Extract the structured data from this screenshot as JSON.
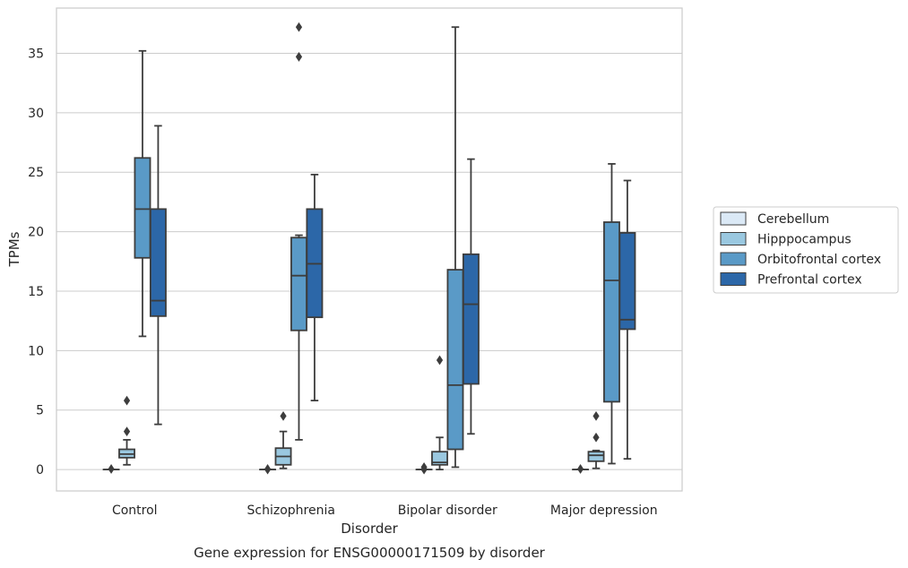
{
  "chart_data": {
    "type": "box",
    "caption": "Gene expression for ENSG00000171509 by disorder",
    "xlabel": "Disorder",
    "ylabel": "TPMs",
    "ylim": [
      -1.8,
      38.8
    ],
    "yticks": [
      0,
      5,
      10,
      15,
      20,
      25,
      30,
      35
    ],
    "grid": "horizontal",
    "legend_position": "right",
    "categories": [
      "Control",
      "Schizophrenia",
      "Bipolar disorder",
      "Major depression"
    ],
    "series": [
      {
        "name": "Cerebellum",
        "color": "#dbe9f6",
        "boxes": [
          {
            "whisker_low": 0.0,
            "q1": 0.0,
            "median": 0.0,
            "q3": 0.0,
            "whisker_high": 0.0,
            "outliers": [
              0.05
            ]
          },
          {
            "whisker_low": 0.0,
            "q1": 0.0,
            "median": 0.0,
            "q3": 0.0,
            "whisker_high": 0.0,
            "outliers": [
              0.0,
              0.05
            ]
          },
          {
            "whisker_low": 0.0,
            "q1": 0.0,
            "median": 0.0,
            "q3": 0.0,
            "whisker_high": 0.0,
            "outliers": [
              0.0,
              0.2
            ]
          },
          {
            "whisker_low": 0.0,
            "q1": 0.0,
            "median": 0.0,
            "q3": 0.0,
            "whisker_high": 0.0,
            "outliers": [
              0.05
            ]
          }
        ]
      },
      {
        "name": "Hipppocampus",
        "color": "#9ac8e0",
        "boxes": [
          {
            "whisker_low": 0.4,
            "q1": 1.0,
            "median": 1.3,
            "q3": 1.7,
            "whisker_high": 2.5,
            "outliers": [
              3.2,
              5.8
            ]
          },
          {
            "whisker_low": 0.1,
            "q1": 0.4,
            "median": 1.1,
            "q3": 1.8,
            "whisker_high": 3.2,
            "outliers": [
              4.5
            ]
          },
          {
            "whisker_low": 0.0,
            "q1": 0.4,
            "median": 0.6,
            "q3": 1.5,
            "whisker_high": 2.7,
            "outliers": [
              9.2
            ]
          },
          {
            "whisker_low": 0.1,
            "q1": 0.7,
            "median": 1.2,
            "q3": 1.5,
            "whisker_high": 1.6,
            "outliers": [
              2.7,
              4.5
            ]
          }
        ]
      },
      {
        "name": "Orbitofrontal cortex",
        "color": "#5a9ac7",
        "boxes": [
          {
            "whisker_low": 11.2,
            "q1": 17.8,
            "median": 21.9,
            "q3": 26.2,
            "whisker_high": 35.2,
            "outliers": []
          },
          {
            "whisker_low": 2.5,
            "q1": 11.7,
            "median": 16.3,
            "q3": 19.5,
            "whisker_high": 19.7,
            "outliers": [
              34.7,
              37.2
            ]
          },
          {
            "whisker_low": 0.2,
            "q1": 1.7,
            "median": 7.1,
            "q3": 16.8,
            "whisker_high": 37.2,
            "outliers": []
          },
          {
            "whisker_low": 0.5,
            "q1": 5.7,
            "median": 15.9,
            "q3": 20.8,
            "whisker_high": 25.7,
            "outliers": []
          }
        ]
      },
      {
        "name": "Prefrontal cortex",
        "color": "#2c67a8",
        "boxes": [
          {
            "whisker_low": 3.8,
            "q1": 12.9,
            "median": 14.2,
            "q3": 21.9,
            "whisker_high": 28.9,
            "outliers": []
          },
          {
            "whisker_low": 5.8,
            "q1": 12.8,
            "median": 17.3,
            "q3": 21.9,
            "whisker_high": 24.8,
            "outliers": []
          },
          {
            "whisker_low": 3.0,
            "q1": 7.2,
            "median": 13.9,
            "q3": 18.1,
            "whisker_high": 26.1,
            "outliers": []
          },
          {
            "whisker_low": 0.9,
            "q1": 11.8,
            "median": 12.6,
            "q3": 19.9,
            "whisker_high": 24.3,
            "outliers": []
          }
        ]
      }
    ]
  }
}
